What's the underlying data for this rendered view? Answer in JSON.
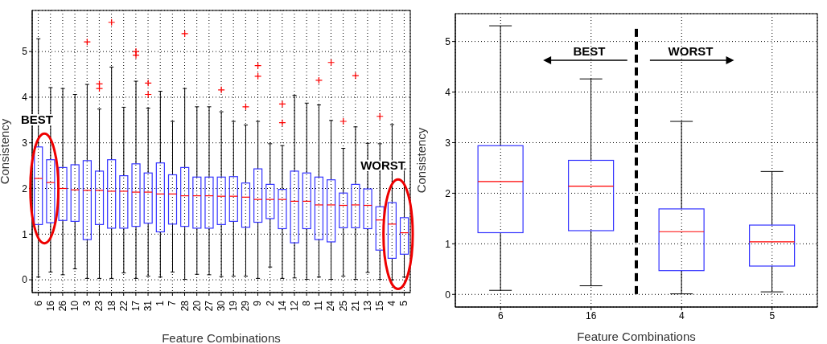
{
  "chart_data": [
    {
      "type": "box",
      "xlabel": "Feature Combinations",
      "ylabel": "Consistency",
      "categories": [
        "6",
        "16",
        "26",
        "10",
        "3",
        "23",
        "18",
        "22",
        "17",
        "31",
        "1",
        "7",
        "28",
        "20",
        "27",
        "30",
        "19",
        "29",
        "9",
        "2",
        "14",
        "12",
        "8",
        "11",
        "24",
        "25",
        "21",
        "13",
        "15",
        "4",
        "5"
      ],
      "boxes": [
        {
          "low": 0.06,
          "q1": 1.21,
          "median": 2.22,
          "q3": 2.91,
          "high": 5.28
        },
        {
          "low": 0.17,
          "q1": 1.25,
          "median": 2.13,
          "q3": 2.63,
          "high": 4.21
        },
        {
          "low": 0.11,
          "q1": 1.3,
          "median": 2.0,
          "q3": 2.46,
          "high": 4.19
        },
        {
          "low": 0.24,
          "q1": 1.28,
          "median": 1.97,
          "q3": 2.52,
          "high": 4.06
        },
        {
          "low": 0.03,
          "q1": 0.88,
          "median": 1.96,
          "q3": 2.61,
          "high": 4.28,
          "outliers": [
            5.21
          ]
        },
        {
          "low": 0.03,
          "q1": 1.21,
          "median": 1.96,
          "q3": 2.38,
          "high": 3.74,
          "outliers": [
            4.29,
            4.19
          ]
        },
        {
          "low": 0.03,
          "q1": 1.13,
          "median": 1.94,
          "q3": 2.63,
          "high": 4.66,
          "outliers": [
            5.64
          ]
        },
        {
          "low": 0.15,
          "q1": 1.13,
          "median": 1.94,
          "q3": 2.28,
          "high": 3.78
        },
        {
          "low": 0.03,
          "q1": 1.17,
          "median": 1.92,
          "q3": 2.54,
          "high": 4.35,
          "outliers": [
            5.0,
            4.92
          ]
        },
        {
          "low": 0.08,
          "q1": 1.24,
          "median": 1.92,
          "q3": 2.34,
          "high": 3.76,
          "outliers": [
            4.31,
            4.06
          ]
        },
        {
          "low": 0.06,
          "q1": 1.05,
          "median": 1.88,
          "q3": 2.56,
          "high": 4.13
        },
        {
          "low": 0.17,
          "q1": 1.22,
          "median": 1.88,
          "q3": 2.3,
          "high": 3.47
        },
        {
          "low": 0.01,
          "q1": 1.17,
          "median": 1.84,
          "q3": 2.46,
          "high": 4.19,
          "outliers": [
            5.39
          ]
        },
        {
          "low": 0.12,
          "q1": 1.13,
          "median": 1.84,
          "q3": 2.25,
          "high": 3.79
        },
        {
          "low": 0.11,
          "q1": 1.13,
          "median": 1.84,
          "q3": 2.25,
          "high": 3.79
        },
        {
          "low": 0.07,
          "q1": 1.21,
          "median": 1.83,
          "q3": 2.25,
          "high": 3.68,
          "outliers": [
            4.16
          ]
        },
        {
          "low": 0.08,
          "q1": 1.28,
          "median": 1.83,
          "q3": 2.26,
          "high": 3.47
        },
        {
          "low": 0.08,
          "q1": 1.15,
          "median": 1.81,
          "q3": 2.12,
          "high": 3.39,
          "outliers": [
            3.79
          ]
        },
        {
          "low": 0.03,
          "q1": 1.26,
          "median": 1.76,
          "q3": 2.43,
          "high": 3.47,
          "outliers": [
            4.69,
            4.46
          ]
        },
        {
          "low": 0.28,
          "q1": 1.34,
          "median": 1.76,
          "q3": 2.09,
          "high": 2.98
        },
        {
          "low": 0.03,
          "q1": 1.12,
          "median": 1.76,
          "q3": 1.98,
          "high": 2.94,
          "outliers": [
            3.85,
            3.44
          ]
        },
        {
          "low": 0.04,
          "q1": 0.81,
          "median": 1.72,
          "q3": 2.38,
          "high": 4.04
        },
        {
          "low": 0.01,
          "q1": 1.12,
          "median": 1.72,
          "q3": 2.34,
          "high": 3.87
        },
        {
          "low": 0.06,
          "q1": 0.88,
          "median": 1.64,
          "q3": 2.25,
          "high": 3.83,
          "outliers": [
            4.37
          ]
        },
        {
          "low": 0.01,
          "q1": 0.83,
          "median": 1.64,
          "q3": 2.19,
          "high": 3.49,
          "outliers": [
            4.76
          ]
        },
        {
          "low": 0.08,
          "q1": 1.14,
          "median": 1.63,
          "q3": 1.9,
          "high": 2.88,
          "outliers": [
            3.47
          ]
        },
        {
          "low": 0.01,
          "q1": 1.14,
          "median": 1.64,
          "q3": 2.09,
          "high": 3.35,
          "outliers": [
            4.47
          ]
        },
        {
          "low": 0.16,
          "q1": 1.12,
          "median": 1.63,
          "q3": 1.99,
          "high": 2.99
        },
        {
          "low": 0.01,
          "q1": 0.65,
          "median": 1.31,
          "q3": 1.6,
          "high": 2.98,
          "outliers": [
            3.58
          ]
        },
        {
          "low": 0.0,
          "q1": 0.47,
          "median": 1.22,
          "q3": 1.69,
          "high": 3.4
        },
        {
          "low": 0.06,
          "q1": 0.56,
          "median": 1.03,
          "q3": 1.36,
          "high": 2.43
        }
      ],
      "ylim": [
        -0.28,
        5.9
      ],
      "yticks": [
        0,
        1,
        2,
        3,
        4,
        5
      ],
      "grid": true,
      "annotations": [
        "BEST",
        "WORST"
      ]
    },
    {
      "type": "box",
      "xlabel": "Feature Combinations",
      "ylabel": "Consistency",
      "categories": [
        "6",
        "16",
        "4",
        "5"
      ],
      "boxes": [
        {
          "low": 0.08,
          "q1": 1.22,
          "median": 2.23,
          "q3": 2.94,
          "high": 5.31
        },
        {
          "low": 0.17,
          "q1": 1.26,
          "median": 2.14,
          "q3": 2.65,
          "high": 4.26
        },
        {
          "low": 0.01,
          "q1": 0.47,
          "median": 1.24,
          "q3": 1.69,
          "high": 3.42
        },
        {
          "low": 0.05,
          "q1": 0.56,
          "median": 1.04,
          "q3": 1.37,
          "high": 2.43
        }
      ],
      "ylim": [
        -0.25,
        5.55
      ],
      "yticks": [
        0,
        1,
        2,
        3,
        4,
        5
      ],
      "grid": true,
      "annotations": [
        "BEST",
        "WORST"
      ]
    }
  ]
}
